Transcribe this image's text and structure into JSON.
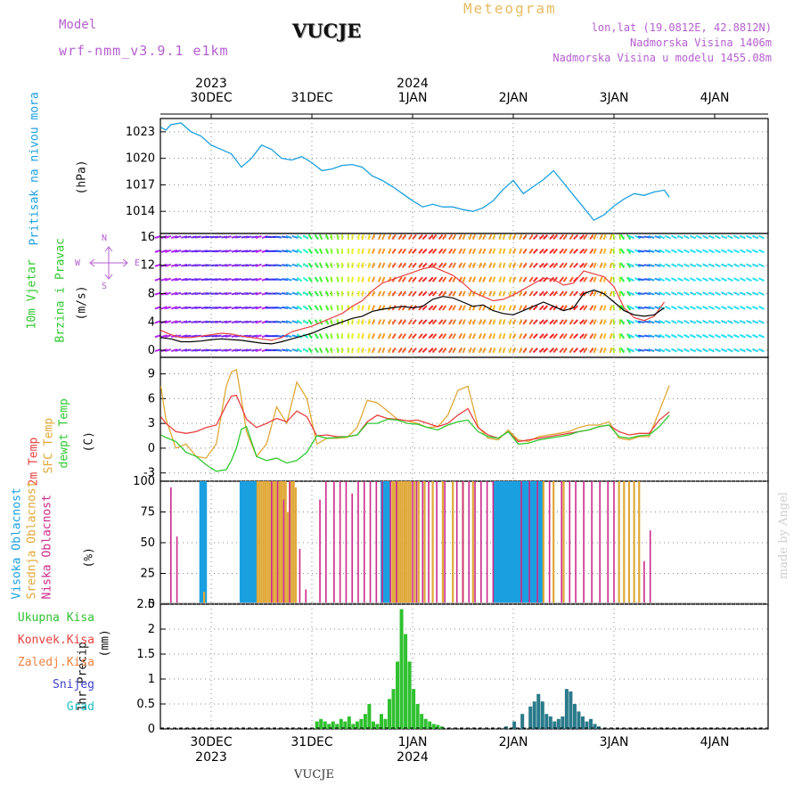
{
  "header": {
    "model_label": "Model",
    "model_name": "wrf-nmm_v3.9.1  e1km",
    "station": "VUCJE",
    "product": "Meteogram",
    "coords": "lon,lat (19.0812E, 42.8812N)",
    "elevation": "Nadmorska Visina 1406m",
    "model_elevation": "Nadmorska Visina u modelu 1455.08m"
  },
  "footer": {
    "station": "VUCJE",
    "credit": "made by Angel"
  },
  "axis_dates": {
    "top_years": [
      "2023",
      "2024"
    ],
    "days": [
      "30DEC",
      "31DEC",
      "1JAN",
      "2JAN",
      "3JAN",
      "4JAN"
    ],
    "bottom_years": [
      "2023",
      "2024"
    ]
  },
  "colors": {
    "pressure": "#1aa0e0",
    "temp2m": "#e84040",
    "sfc_temp": "#e0a838",
    "dewpt": "#30c830",
    "high_cloud": "#1aa0e0",
    "mid_cloud": "#e0a838",
    "low_cloud": "#cc2a8c",
    "total_precip": "#30c030",
    "convective": "#e84040",
    "snow": "#4040d0",
    "hail": "#20c0c0"
  },
  "chart_data": [
    {
      "type": "line",
      "title": "",
      "ylabel_1": "Pritisak na nivou mora",
      "ylabel_2": "(hPa)",
      "yticks": [
        "1023",
        "1020",
        "1017",
        "1014"
      ],
      "ylim": [
        1011.5,
        1024.5
      ],
      "x_days": [
        -0.5,
        -0.45,
        -0.4,
        -0.3,
        -0.2,
        -0.1,
        0.0,
        0.1,
        0.2,
        0.3,
        0.4,
        0.5,
        0.6,
        0.7,
        0.8,
        0.9,
        1.0,
        1.1,
        1.2,
        1.3,
        1.4,
        1.5,
        1.6,
        1.7,
        1.8,
        1.9,
        2.0,
        2.1,
        2.2,
        2.3,
        2.4,
        2.5,
        2.6,
        2.7,
        2.8,
        2.9,
        3.0,
        3.1,
        3.2,
        3.3,
        3.4,
        3.5,
        3.6,
        3.7,
        3.8,
        3.9,
        4.0,
        4.1,
        4.2,
        4.3,
        4.4,
        4.5,
        4.55
      ],
      "series": [
        {
          "values": [
            1023.5,
            1023.2,
            1023.8,
            1024.0,
            1023.0,
            1022.5,
            1021.5,
            1021.0,
            1020.5,
            1019.0,
            1020.0,
            1021.5,
            1021.0,
            1020.0,
            1019.8,
            1020.2,
            1019.5,
            1018.6,
            1018.8,
            1019.2,
            1019.3,
            1019.0,
            1018.0,
            1017.5,
            1016.8,
            1016.0,
            1015.2,
            1014.5,
            1014.8,
            1014.5,
            1014.5,
            1014.2,
            1014.0,
            1014.4,
            1015.2,
            1016.5,
            1017.5,
            1016.0,
            1016.8,
            1017.6,
            1018.6,
            1017.2,
            1015.8,
            1014.4,
            1013.0,
            1013.6,
            1014.6,
            1015.4,
            1016.0,
            1015.8,
            1016.2,
            1016.4,
            1015.6
          ]
        }
      ]
    },
    {
      "type": "line",
      "title": "",
      "ylabel_1": "10m Vjetar",
      "ylabel_2": "Brzina i Pravac",
      "ylabel_3": "(m/s)",
      "compass": {
        "n": "N",
        "e": "E",
        "s": "S",
        "w": "W"
      },
      "yticks": [
        "16",
        "12",
        "8",
        "4",
        "0"
      ],
      "ylim": [
        -1,
        16.5
      ],
      "x_days": [
        -0.5,
        -0.4,
        -0.3,
        -0.2,
        -0.1,
        0.0,
        0.1,
        0.2,
        0.3,
        0.4,
        0.5,
        0.6,
        0.7,
        0.8,
        0.9,
        1.0,
        1.1,
        1.2,
        1.3,
        1.4,
        1.5,
        1.6,
        1.7,
        1.8,
        1.9,
        2.0,
        2.1,
        2.2,
        2.3,
        2.4,
        2.5,
        2.6,
        2.7,
        2.8,
        2.9,
        3.0,
        3.1,
        3.2,
        3.3,
        3.4,
        3.5,
        3.6,
        3.7,
        3.8,
        3.9,
        4.0,
        4.1,
        4.2,
        4.3,
        4.4,
        4.5
      ],
      "series": [
        {
          "values": [
            1.8,
            1.6,
            1.2,
            1.2,
            1.3,
            1.5,
            1.6,
            1.5,
            1.4,
            1.2,
            1.0,
            0.9,
            1.2,
            1.6,
            2.0,
            2.4,
            3.0,
            3.5,
            4.0,
            4.5,
            4.8,
            5.5,
            5.8,
            6.0,
            6.2,
            6.0,
            6.2,
            7.2,
            7.6,
            7.4,
            6.8,
            6.2,
            6.4,
            5.6,
            5.2,
            5.0,
            5.6,
            6.2,
            6.8,
            6.2,
            5.6,
            6.0,
            8.0,
            8.5,
            8.0,
            6.8,
            5.6,
            5.0,
            4.8,
            5.0,
            6.0
          ]
        },
        {
          "values": [
            2.8,
            2.2,
            1.8,
            1.8,
            2.0,
            2.2,
            2.4,
            2.3,
            2.0,
            1.8,
            1.6,
            1.4,
            1.8,
            2.6,
            3.0,
            3.4,
            4.0,
            4.6,
            5.2,
            6.2,
            7.0,
            8.4,
            9.5,
            10.0,
            10.5,
            11.0,
            11.5,
            11.8,
            11.2,
            10.6,
            9.5,
            8.2,
            7.6,
            7.0,
            7.2,
            7.8,
            8.6,
            9.4,
            10.2,
            10.0,
            9.2,
            9.5,
            11.2,
            10.8,
            10.4,
            9.0,
            6.0,
            4.6,
            4.2,
            4.8,
            6.8
          ]
        }
      ],
      "wind_dir_deg": [
        70,
        70,
        75,
        80,
        80,
        85,
        80,
        75,
        80,
        80,
        70,
        90,
        100,
        110,
        130,
        150,
        160,
        170,
        180,
        185,
        190,
        200,
        200,
        210,
        210,
        215,
        220,
        215,
        210,
        205,
        200,
        200,
        200,
        195,
        195,
        200,
        210,
        220,
        220,
        215,
        210,
        220,
        210,
        200,
        195,
        175,
        150,
        120,
        100,
        110,
        120
      ],
      "wind_speed_levels": [
        16,
        14,
        12,
        10,
        8,
        6,
        4,
        2,
        0
      ]
    },
    {
      "type": "line",
      "title": "",
      "ylabel_1": "2m Temp",
      "ylabel_2": "SFC Temp",
      "ylabel_3": "dewpt Temp",
      "ylabel_4": "(C)",
      "yticks": [
        "9",
        "6",
        "3",
        "0",
        "-3"
      ],
      "ylim": [
        -4,
        11
      ],
      "x_days": [
        -0.5,
        -0.45,
        -0.35,
        -0.25,
        -0.15,
        -0.05,
        0.05,
        0.15,
        0.2,
        0.25,
        0.3,
        0.35,
        0.45,
        0.55,
        0.65,
        0.75,
        0.85,
        0.95,
        1.05,
        1.15,
        1.25,
        1.35,
        1.45,
        1.55,
        1.65,
        1.75,
        1.85,
        1.95,
        2.05,
        2.15,
        2.25,
        2.35,
        2.45,
        2.55,
        2.65,
        2.75,
        2.85,
        2.95,
        3.05,
        3.15,
        3.25,
        3.35,
        3.45,
        3.55,
        3.65,
        3.75,
        3.85,
        3.95,
        4.05,
        4.15,
        4.25,
        4.35,
        4.45,
        4.55
      ],
      "series": [
        {
          "values": [
            3.8,
            3.0,
            2.0,
            1.8,
            2.0,
            2.5,
            2.8,
            5.2,
            6.3,
            6.4,
            5.0,
            3.5,
            2.5,
            3.0,
            3.6,
            3.2,
            4.5,
            3.8,
            1.5,
            1.6,
            1.4,
            1.4,
            1.6,
            3.2,
            4.0,
            3.6,
            3.5,
            3.3,
            3.4,
            3.0,
            2.6,
            3.0,
            4.0,
            4.8,
            2.5,
            1.6,
            1.2,
            2.0,
            0.8,
            1.0,
            1.2,
            1.4,
            1.6,
            1.8,
            2.0,
            2.2,
            2.6,
            2.8,
            2.0,
            1.6,
            1.8,
            1.8,
            3.4,
            4.4
          ]
        },
        {
          "values": [
            7.5,
            3.5,
            0.0,
            0.5,
            -1.0,
            -1.2,
            0.5,
            7.5,
            9.2,
            9.5,
            6.0,
            2.0,
            -1.0,
            0.5,
            5.0,
            3.0,
            8.0,
            6.0,
            0.5,
            1.2,
            1.2,
            1.3,
            2.5,
            5.8,
            5.5,
            4.5,
            3.5,
            3.3,
            3.0,
            2.5,
            2.6,
            4.0,
            7.0,
            7.5,
            2.6,
            1.2,
            1.0,
            2.2,
            1.0,
            0.8,
            1.4,
            1.6,
            1.8,
            2.0,
            2.5,
            2.8,
            2.8,
            3.2,
            1.2,
            1.0,
            1.4,
            1.4,
            4.5,
            7.6
          ]
        },
        {
          "values": [
            1.6,
            1.3,
            0.8,
            -0.5,
            -1.0,
            -2.0,
            -2.8,
            -2.6,
            -1.5,
            0.0,
            2.3,
            2.6,
            -1.0,
            -1.5,
            -1.2,
            -1.8,
            -1.5,
            -0.5,
            1.5,
            1.2,
            1.3,
            1.4,
            1.6,
            3.0,
            3.0,
            3.5,
            3.4,
            3.0,
            2.9,
            2.5,
            2.2,
            2.8,
            3.2,
            3.4,
            2.0,
            1.4,
            1.2,
            2.0,
            0.5,
            0.6,
            1.0,
            1.2,
            1.4,
            1.6,
            2.0,
            2.2,
            2.6,
            2.8,
            1.4,
            1.2,
            1.5,
            1.6,
            2.6,
            4.0
          ]
        }
      ]
    },
    {
      "type": "bar",
      "title": "",
      "ylabel_1": "Visoka Oblacnost",
      "ylabel_2": "Srednja Oblacnost",
      "ylabel_3": "Niska Oblacnost",
      "ylabel_4": "(%)",
      "yticks": [
        "100",
        "75",
        "50",
        "25",
        "0"
      ],
      "ylim": [
        0,
        100
      ],
      "series": [
        {
          "name": "Visoka Oblacnost",
          "x_days": [
            -0.1,
            -0.08,
            -0.06,
            0.3,
            0.32,
            0.34,
            0.36,
            0.38,
            0.4,
            0.42,
            0.44,
            1.7,
            1.72,
            1.74,
            1.76,
            2.82,
            2.84,
            2.86,
            2.88,
            2.9,
            2.92,
            2.94,
            2.96,
            2.98,
            3.0,
            3.02,
            3.04,
            3.06,
            3.08,
            3.1,
            3.12,
            3.14,
            3.16,
            3.18,
            3.2,
            3.22,
            3.24,
            3.26,
            3.28
          ],
          "values": [
            100,
            100,
            100,
            100,
            100,
            100,
            100,
            100,
            100,
            100,
            100,
            100,
            100,
            100,
            100,
            100,
            100,
            100,
            100,
            100,
            100,
            100,
            100,
            100,
            100,
            100,
            100,
            100,
            100,
            100,
            100,
            100,
            100,
            100,
            100,
            100,
            100,
            100,
            100
          ]
        },
        {
          "name": "Srednja Oblacnost",
          "x_days": [
            -0.07,
            0.46,
            0.48,
            0.5,
            0.52,
            0.54,
            0.56,
            0.58,
            0.6,
            0.62,
            0.64,
            0.66,
            0.68,
            0.7,
            0.72,
            0.74,
            0.76,
            0.78,
            0.8,
            0.82,
            0.84,
            1.8,
            1.82,
            1.84,
            1.86,
            1.88,
            1.9,
            1.92,
            1.94,
            1.96,
            1.98,
            2.02,
            2.06,
            2.12,
            2.2,
            2.3,
            2.4,
            2.5,
            2.6,
            3.3,
            3.4,
            3.5,
            4.05,
            4.1,
            4.15,
            4.2,
            4.25
          ],
          "values": [
            10,
            100,
            100,
            100,
            100,
            100,
            100,
            100,
            100,
            100,
            100,
            100,
            100,
            100,
            100,
            100,
            75,
            100,
            100,
            100,
            95,
            100,
            100,
            100,
            100,
            100,
            100,
            100,
            100,
            100,
            100,
            100,
            100,
            100,
            100,
            100,
            100,
            100,
            100,
            100,
            100,
            100,
            100,
            100,
            100,
            100,
            100
          ]
        },
        {
          "name": "Niska Oblacnost",
          "x_days": [
            -0.4,
            -0.34,
            0.6,
            0.66,
            0.72,
            0.78,
            0.88,
            0.94,
            1.08,
            1.14,
            1.22,
            1.28,
            1.34,
            1.4,
            1.46,
            1.52,
            1.58,
            1.64,
            1.7,
            1.78,
            1.84,
            2.0,
            2.04,
            2.1,
            2.16,
            2.24,
            2.32,
            2.44,
            2.5,
            2.56,
            2.62,
            2.68,
            2.74,
            2.8,
            3.08,
            3.16,
            3.24,
            3.36,
            3.48,
            3.56,
            3.62,
            3.7,
            3.78,
            3.86,
            3.94,
            4.0,
            4.3,
            4.36
          ],
          "values": [
            95,
            55,
            100,
            100,
            85,
            100,
            45,
            12,
            85,
            100,
            100,
            100,
            100,
            90,
            100,
            100,
            100,
            100,
            100,
            100,
            100,
            100,
            100,
            100,
            100,
            100,
            100,
            100,
            100,
            100,
            100,
            100,
            100,
            100,
            100,
            100,
            100,
            100,
            100,
            100,
            100,
            100,
            100,
            100,
            100,
            100,
            35,
            60
          ]
        }
      ]
    },
    {
      "type": "bar",
      "title": "",
      "ylabel_1": "1hr Precip",
      "ylabel_2": "(mm)",
      "legend": [
        "Ukupna  Kisa",
        "Konvek.Kisa",
        "Zaledj.Kisa",
        "Snijeg",
        "Grad"
      ],
      "yticks": [
        "2.5",
        "2",
        "1.5",
        "1",
        "0.5",
        "0"
      ],
      "ylim": [
        0,
        2.5
      ],
      "series": [
        {
          "name": "Ukupna  Kisa",
          "x_days": [
            1.05,
            1.09,
            1.13,
            1.17,
            1.21,
            1.25,
            1.29,
            1.33,
            1.37,
            1.41,
            1.45,
            1.49,
            1.53,
            1.57,
            1.61,
            1.65,
            1.69,
            1.73,
            1.77,
            1.81,
            1.85,
            1.89,
            1.93,
            1.97,
            2.01,
            2.05,
            2.09,
            2.13,
            2.17,
            2.21,
            2.25,
            2.29
          ],
          "values": [
            0.15,
            0.2,
            0.15,
            0.1,
            0.15,
            0.1,
            0.2,
            0.15,
            0.25,
            0.1,
            0.15,
            0.2,
            0.3,
            0.5,
            0.15,
            0.1,
            0.3,
            0.2,
            0.6,
            0.8,
            1.35,
            2.4,
            1.9,
            1.35,
            0.8,
            0.5,
            0.3,
            0.2,
            0.15,
            0.1,
            0.08,
            0.05
          ]
        },
        {
          "name": "Snijeg",
          "x_days": [
            2.93,
            3.01,
            3.09,
            3.17,
            3.21,
            3.25,
            3.29,
            3.33,
            3.37,
            3.41,
            3.45,
            3.49,
            3.53,
            3.57,
            3.61,
            3.65,
            3.69,
            3.73,
            3.77,
            3.81,
            3.85
          ],
          "values": [
            0.05,
            0.15,
            0.3,
            0.45,
            0.55,
            0.7,
            0.55,
            0.3,
            0.25,
            0.15,
            0.2,
            0.25,
            0.8,
            0.75,
            0.5,
            0.35,
            0.25,
            0.15,
            0.2,
            0.1,
            0.05
          ]
        }
      ]
    }
  ]
}
